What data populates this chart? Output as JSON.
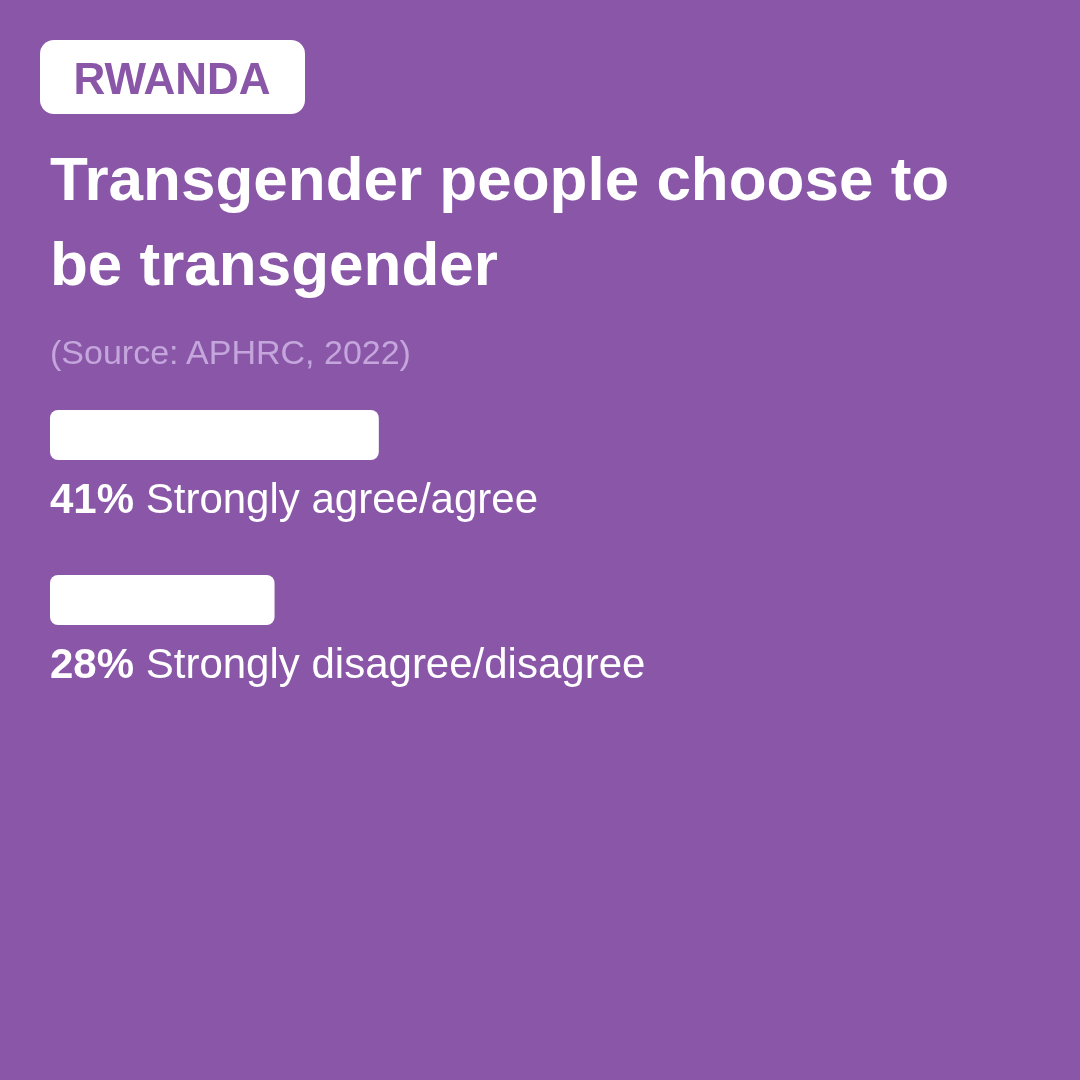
{
  "chart_data": {
    "type": "bar",
    "orientation": "horizontal",
    "subtitle": "RWANDA",
    "title": "Transgender people choose to be transgender",
    "annotations": [
      "(Source: APHRC, 2022)"
    ],
    "categories": [
      "Strongly agree/agree",
      "Strongly disagree/disagree"
    ],
    "values": [
      41,
      28
    ],
    "value_labels": [
      "41%",
      "28%"
    ],
    "color": "#ffffff"
  }
}
